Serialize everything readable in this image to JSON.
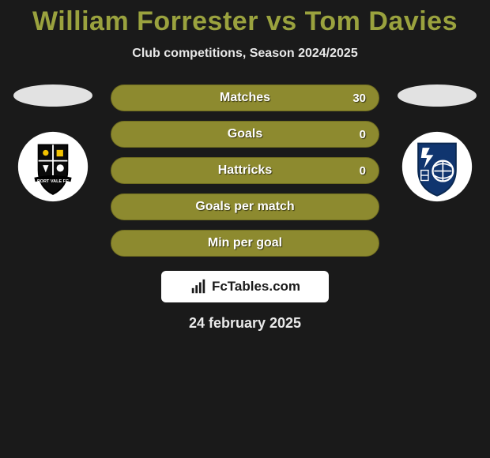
{
  "title": {
    "player_a": "William Forrester",
    "vs": "vs",
    "player_b": "Tom Davies",
    "title_color": "#9aa23e",
    "font_size": 34
  },
  "subtitle": "Club competitions, Season 2024/2025",
  "stats": {
    "pill_bg": "#8d8a2f",
    "pill_border": "#6f6c20",
    "text_color": "#ffffff",
    "items": [
      {
        "label": "Matches",
        "value_right": "30"
      },
      {
        "label": "Goals",
        "value_right": "0"
      },
      {
        "label": "Hattricks",
        "value_right": "0"
      },
      {
        "label": "Goals per match",
        "value_right": ""
      },
      {
        "label": "Min per goal",
        "value_right": ""
      }
    ]
  },
  "avatar": {
    "ellipse_color": "#e2e2e2"
  },
  "crest_left": {
    "name": "port-vale-crest",
    "bg": "#ffffff",
    "shield_fill": "#0a0a0a",
    "shield_stroke": "#000000",
    "accent": "#f2c200"
  },
  "crest_right": {
    "name": "tranmere-rovers-crest",
    "bg": "#ffffff",
    "shield_fill": "#10356f",
    "shield_stroke": "#0a2850",
    "accent": "#ffffff"
  },
  "brand": {
    "icon_color": "#1a1a1a",
    "text": "FcTables.com"
  },
  "date": "24 february 2025",
  "background_color": "#1a1a1a"
}
